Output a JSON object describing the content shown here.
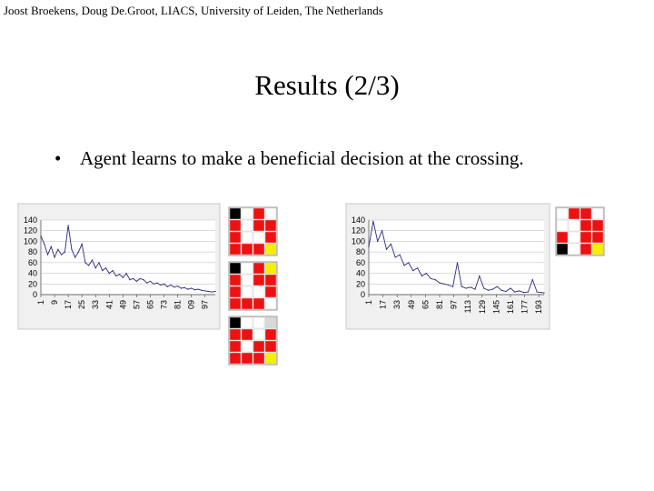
{
  "header": {
    "text": "Joost Broekens, Doug De.Groot, LIACS, University of Leiden, The Netherlands"
  },
  "slide": {
    "title": "Results (2/3)",
    "bullet": "Agent learns to make a beneficial decision at the crossing."
  },
  "chart_data": [
    {
      "type": "line",
      "title": "",
      "xlabel": "",
      "ylabel": "",
      "ylim": [
        0,
        140
      ],
      "xlim": [
        1,
        103
      ],
      "y_ticks": [
        "140",
        "120",
        "100",
        "80",
        "60",
        "40",
        "20",
        "0"
      ],
      "x_ticks": [
        "1",
        "9",
        "17",
        "25",
        "33",
        "41",
        "49",
        "57",
        "65",
        "73",
        "81",
        "89",
        "97"
      ],
      "x_tick_positions": [
        1,
        9,
        17,
        25,
        33,
        41,
        49,
        57,
        65,
        73,
        81,
        89,
        97
      ],
      "x_tick_display": [
        "1",
        "9",
        "17",
        "25",
        "33",
        "41",
        "49",
        "57",
        "65",
        "73",
        "81",
        "09",
        "97"
      ],
      "grid": true,
      "line_color": "#2b2b80",
      "series": [
        {
          "x": [
            1,
            3,
            5,
            7,
            9,
            11,
            13,
            15,
            17,
            19,
            21,
            23,
            25,
            27,
            29,
            31,
            33,
            35,
            37,
            39,
            41,
            43,
            45,
            47,
            49,
            51,
            53,
            55,
            57,
            59,
            61,
            63,
            65,
            67,
            69,
            71,
            73,
            75,
            77,
            79,
            81,
            83,
            85,
            87,
            89,
            91,
            93,
            95,
            97,
            99,
            101,
            103
          ],
          "y": [
            110,
            95,
            75,
            90,
            70,
            85,
            75,
            80,
            130,
            85,
            70,
            80,
            95,
            60,
            55,
            65,
            50,
            60,
            45,
            50,
            40,
            45,
            35,
            38,
            32,
            40,
            28,
            30,
            25,
            30,
            28,
            22,
            25,
            20,
            22,
            18,
            20,
            15,
            18,
            14,
            16,
            12,
            13,
            10,
            12,
            9,
            10,
            8,
            7,
            6,
            5,
            6
          ]
        }
      ]
    },
    {
      "type": "line",
      "title": "",
      "xlabel": "",
      "ylabel": "",
      "ylim": [
        0,
        140
      ],
      "xlim": [
        1,
        199
      ],
      "y_ticks": [
        "140",
        "120",
        "100",
        "80",
        "60",
        "40",
        "20",
        "0"
      ],
      "x_ticks": [
        "1",
        "17",
        "33",
        "49",
        "65",
        "81",
        "97",
        "113",
        "129",
        "145",
        "161",
        "177",
        "193"
      ],
      "x_tick_positions": [
        1,
        17,
        33,
        49,
        65,
        81,
        97,
        113,
        129,
        145,
        161,
        177,
        193
      ],
      "x_tick_display": [
        "1",
        "17",
        "33",
        "49",
        "65",
        "81",
        "97",
        "113",
        "129",
        "145",
        "161",
        "177",
        "193"
      ],
      "grid": true,
      "line_color": "#2b2b80",
      "series": [
        {
          "x": [
            1,
            6,
            11,
            16,
            21,
            26,
            31,
            36,
            41,
            46,
            51,
            56,
            61,
            66,
            71,
            76,
            81,
            86,
            91,
            96,
            101,
            106,
            111,
            116,
            121,
            126,
            131,
            136,
            141,
            146,
            151,
            156,
            161,
            166,
            171,
            176,
            181,
            186,
            191,
            196,
            199
          ],
          "y": [
            90,
            138,
            100,
            120,
            85,
            95,
            70,
            75,
            55,
            60,
            45,
            50,
            35,
            40,
            30,
            28,
            22,
            20,
            18,
            15,
            60,
            15,
            12,
            14,
            10,
            35,
            12,
            8,
            10,
            15,
            8,
            6,
            12,
            5,
            7,
            4,
            5,
            28,
            5,
            4,
            3
          ]
        }
      ]
    }
  ],
  "grids": {
    "colors": {
      "red": "#ee1111",
      "white": "#ffffff",
      "black": "#000000",
      "yellow": "#f6f000",
      "gray": "#d8d8d8",
      "line": "#999999"
    },
    "items": [
      {
        "rows": [
          "kwrw",
          "rwrr",
          "rwwr",
          "rrry"
        ]
      },
      {
        "rows": [
          "kwry",
          "rwrr",
          "rwwr",
          "rrrw"
        ]
      },
      {
        "rows": [
          "kwwg",
          "rrwr",
          "rwrr",
          "rrry"
        ]
      },
      {
        "rows": [
          "wrrw",
          "wwrr",
          "rwrr",
          "kwry"
        ]
      }
    ]
  }
}
